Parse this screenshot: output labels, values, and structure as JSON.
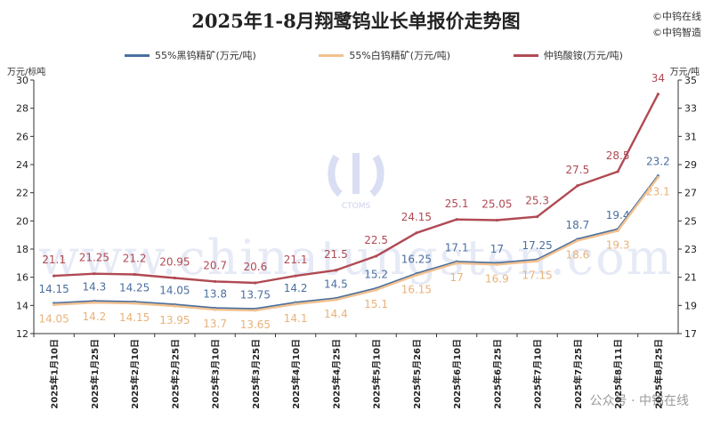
{
  "title": "2025年1-8月翔鹭钨业长单报价走势图",
  "brand_lines": [
    "©中钨在线",
    "©中钨智造"
  ],
  "footer": "公众号 · 中钨在线",
  "watermark": "www.chinatungsten.com",
  "watermark_logo": "CTOMS",
  "left_unit": "万元/标吨",
  "right_unit": "万元/吨",
  "colors": {
    "black": "#4a6fa0",
    "white": "#f2c18f",
    "apt": "#b04a53"
  },
  "chart_data": {
    "type": "line",
    "categories": [
      "2025年1月10日",
      "2025年1月25日",
      "2025年2月10日",
      "2025年2月25日",
      "2025年3月10日",
      "2025年3月25日",
      "2025年4月10日",
      "2025年4月25日",
      "2025年5月10日",
      "2025年5月26日",
      "2025年6月10日",
      "2025年6月25日",
      "2025年7月10日",
      "2025年7月25日",
      "2025年8月11日",
      "2025年8月25日"
    ],
    "series": [
      {
        "name": "55%黑钨精矿(万元/吨)",
        "axis": "left",
        "color": "#4a6fa0",
        "values": [
          14.15,
          14.3,
          14.25,
          14.05,
          13.8,
          13.75,
          14.2,
          14.5,
          15.2,
          16.25,
          17.1,
          17,
          17.25,
          18.7,
          19.4,
          23.2
        ],
        "labels": [
          "14.15",
          "14.3",
          "14.25",
          "14.05",
          "13.8",
          "13.75",
          "14.2",
          "14.5",
          "15.2",
          "16.25",
          "17.1",
          "17",
          "17.25",
          "18.7",
          "19.4",
          "23.2"
        ]
      },
      {
        "name": "55%白钨精矿(万元/吨)",
        "axis": "left",
        "color": "#f2c18f",
        "values": [
          14.05,
          14.2,
          14.15,
          13.95,
          13.7,
          13.65,
          14.1,
          14.4,
          15.1,
          16.15,
          17,
          16.9,
          17.15,
          18.6,
          19.3,
          23.1
        ],
        "labels": [
          "14.05",
          "14.2",
          "14.15",
          "13.95",
          "13.7",
          "13.65",
          "14.1",
          "14.4",
          "15.1",
          "16.15",
          "17",
          "16.9",
          "17.15",
          "18.6",
          "19.3",
          "23.1"
        ]
      },
      {
        "name": "仲钨酸铵(万元/吨)",
        "axis": "right",
        "color": "#b04a53",
        "values": [
          21.1,
          21.25,
          21.2,
          20.95,
          20.7,
          20.6,
          21.1,
          21.5,
          22.5,
          24.15,
          25.1,
          25.05,
          25.3,
          27.5,
          28.5,
          34
        ],
        "labels": [
          "21.1",
          "21.25",
          "21.2",
          "20.95",
          "20.7",
          "20.6",
          "21.1",
          "21.5",
          "22.5",
          "24.15",
          "25.1",
          "25.05",
          "25.3",
          "27.5",
          "28.5",
          "34"
        ]
      }
    ],
    "y_left": {
      "ylim": [
        12,
        30
      ],
      "ticks": [
        "12",
        "14",
        "16",
        "18",
        "20",
        "22",
        "24",
        "26",
        "28",
        "30"
      ]
    },
    "y_right": {
      "ylim": [
        17,
        35
      ],
      "ticks": [
        "17",
        "19",
        "21",
        "23",
        "25",
        "27",
        "29",
        "31",
        "33",
        "35"
      ]
    },
    "grid": false,
    "legend": "top"
  }
}
